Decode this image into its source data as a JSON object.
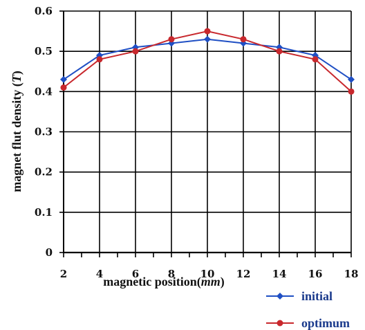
{
  "chart_data": {
    "type": "line",
    "title": "",
    "xlabel": "magnetic position(",
    "xlabel_unit": "mm",
    "xlabel_close": ")",
    "ylabel": "magnet flut density (",
    "ylabel_unit": "T",
    "ylabel_close": ")",
    "x": [
      2,
      4,
      6,
      8,
      10,
      12,
      14,
      16,
      18
    ],
    "x_tick_labels": [
      "2",
      "4",
      "6",
      "8",
      "10",
      "12",
      "14",
      "16",
      "18"
    ],
    "xlim": [
      2,
      18
    ],
    "ylim": [
      0,
      0.6
    ],
    "y_tick_values": [
      0,
      0.1,
      0.2,
      0.3,
      0.4,
      0.5,
      0.6
    ],
    "y_tick_labels": [
      "0",
      "0.1",
      "0.2",
      "0.3",
      "0.4",
      "0.5",
      "0.6"
    ],
    "grid": true,
    "legend_position": "bottom-right",
    "series": [
      {
        "name": "initial",
        "color": "#1f4fc4",
        "marker": "diamond",
        "values": [
          0.43,
          0.49,
          0.51,
          0.52,
          0.53,
          0.52,
          0.51,
          0.49,
          0.43
        ]
      },
      {
        "name": "optimum",
        "color": "#c8282d",
        "marker": "circle",
        "values": [
          0.41,
          0.48,
          0.5,
          0.53,
          0.55,
          0.53,
          0.5,
          0.48,
          0.4
        ]
      }
    ]
  }
}
